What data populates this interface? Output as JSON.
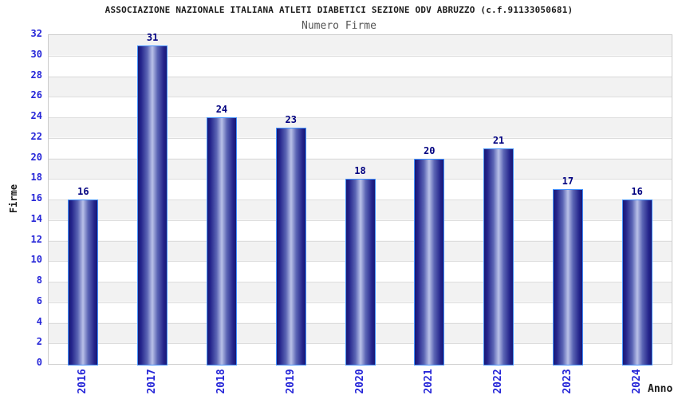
{
  "header": {
    "title": "ASSOCIAZIONE NAZIONALE ITALIANA ATLETI DIABETICI SEZIONE ODV ABRUZZO (c.f.91133050681)",
    "subtitle": "Numero Firme"
  },
  "chart_data": {
    "type": "bar",
    "title": "Numero Firme",
    "categories": [
      "2016",
      "2017",
      "2018",
      "2019",
      "2020",
      "2021",
      "2022",
      "2023",
      "2024"
    ],
    "values": [
      16,
      31,
      24,
      23,
      18,
      20,
      21,
      17,
      16
    ],
    "xlabel": "Anno",
    "ylabel": "Firme",
    "ylim": [
      0,
      32
    ],
    "ytick_step": 2,
    "grid": true,
    "legend": false,
    "band_fill": "alternating horizontal bands every 2 units",
    "colors": {
      "bar_dark": "#191975",
      "bar_mid": "#5a64b4",
      "bar_light": "#b9c1e8",
      "bar_border": "#4492ff",
      "tick_label": "#2626d8",
      "value_label": "#000080",
      "band": "#f2f2f2",
      "gridline": "#dddddd",
      "plot_border": "#cccccc",
      "title": "#1a1a1a",
      "subtitle": "#555555"
    }
  }
}
